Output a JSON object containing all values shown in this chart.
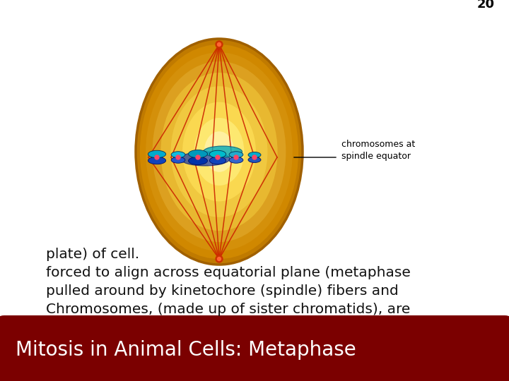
{
  "title": "Mitosis in Animal Cells: Metaphase",
  "title_bg_color": "#7B0000",
  "title_text_color": "#FFFFFF",
  "slide_bg_color": "#FFFFFF",
  "border_color": "#7B0000",
  "body_text_line1": "Chromosomes, (made up of sister chromatids), are",
  "body_text_line2": "pulled around by kinetochore (spindle) fibers and",
  "body_text_line3": "forced to align across equatorial plane (metaphase",
  "body_text_line4": "plate) of cell.",
  "annotation_text": "chromosomes at\nspindle equator",
  "page_number": "20",
  "title_fontsize": 20,
  "body_fontsize": 14.5,
  "annotation_fontsize": 9,
  "page_number_fontsize": 13
}
